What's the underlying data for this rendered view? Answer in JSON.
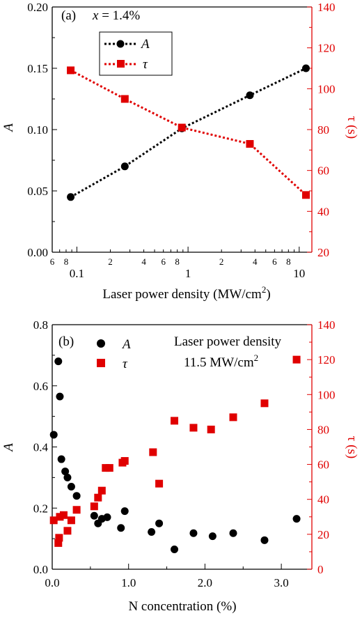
{
  "colors": {
    "series_A": "#000000",
    "series_tau": "#e00000",
    "axis_right": "#e00000"
  },
  "chart_data": [
    {
      "type": "line",
      "panel_label": "(a)",
      "annotation": "x = 1.4%",
      "annotation_var": "x",
      "annotation_rest": " = 1.4%",
      "xlabel": "Laser power density (MW/cm",
      "xlabel_sup": "2",
      "xlabel_end": ")",
      "xscale": "log",
      "xlim": [
        0.06,
        13
      ],
      "xticks_major": [
        "0.1",
        "1",
        "10"
      ],
      "xticks_minor_labels": [
        "6",
        "8",
        "2",
        "4",
        "6",
        "8",
        "2",
        "4",
        "6",
        "8"
      ],
      "ylabel_left": "A",
      "ylim_left": [
        0,
        0.2
      ],
      "yticks_left": [
        "0.00",
        "0.05",
        "0.10",
        "0.15",
        "0.20"
      ],
      "ylabel_right": "τ (s)",
      "ylim_right": [
        20,
        140
      ],
      "yticks_right": [
        "20",
        "40",
        "60",
        "80",
        "100",
        "120",
        "140"
      ],
      "legend_position": "top-left",
      "series": [
        {
          "name": "A",
          "axis": "left",
          "marker": "circle",
          "x": [
            0.088,
            0.27,
            0.88,
            3.6,
            11.5
          ],
          "y": [
            0.045,
            0.07,
            0.101,
            0.128,
            0.15
          ]
        },
        {
          "name": "τ",
          "axis": "right",
          "marker": "square",
          "x": [
            0.088,
            0.27,
            0.88,
            3.6,
            11.5
          ],
          "y": [
            109,
            95,
            81,
            73,
            48
          ]
        }
      ]
    },
    {
      "type": "scatter",
      "panel_label": "(b)",
      "annotation_line1": "Laser power density",
      "annotation_line2": "11.5 MW/cm",
      "annotation_line2_sup": "2",
      "xlabel": "N concentration (%)",
      "xlim": [
        0,
        3.4
      ],
      "xticks": [
        "0.0",
        "1.0",
        "2.0",
        "3.0"
      ],
      "ylabel_left": "A",
      "ylim_left": [
        0,
        0.8
      ],
      "yticks_left": [
        "0.0",
        "0.2",
        "0.4",
        "0.6",
        "0.8"
      ],
      "ylabel_right": "τ (s)",
      "ylim_right": [
        0,
        140
      ],
      "yticks_right": [
        "0",
        "20",
        "40",
        "60",
        "80",
        "100",
        "120",
        "140"
      ],
      "legend_position": "top-left",
      "series": [
        {
          "name": "A",
          "axis": "left",
          "marker": "circle",
          "x": [
            0.02,
            0.08,
            0.1,
            0.12,
            0.17,
            0.2,
            0.25,
            0.32,
            0.55,
            0.6,
            0.65,
            0.72,
            0.9,
            0.95,
            1.3,
            1.4,
            1.6,
            1.85,
            2.1,
            2.37,
            2.78,
            3.2
          ],
          "y": [
            0.44,
            0.68,
            0.565,
            0.36,
            0.32,
            0.3,
            0.27,
            0.24,
            0.175,
            0.15,
            0.165,
            0.17,
            0.135,
            0.19,
            0.122,
            0.15,
            0.065,
            0.118,
            0.108,
            0.118,
            0.095,
            0.165
          ]
        },
        {
          "name": "τ",
          "axis": "right",
          "marker": "square",
          "x": [
            0.02,
            0.08,
            0.09,
            0.1,
            0.15,
            0.2,
            0.25,
            0.32,
            0.55,
            0.6,
            0.65,
            0.7,
            0.75,
            0.92,
            0.95,
            1.32,
            1.4,
            1.6,
            1.85,
            2.08,
            2.37,
            2.78,
            3.2
          ],
          "y": [
            28,
            15,
            18,
            30,
            31,
            22,
            28,
            34,
            36,
            41,
            45,
            58,
            58,
            61,
            62,
            67,
            49,
            85,
            81,
            80,
            87,
            95,
            120
          ]
        }
      ]
    }
  ]
}
